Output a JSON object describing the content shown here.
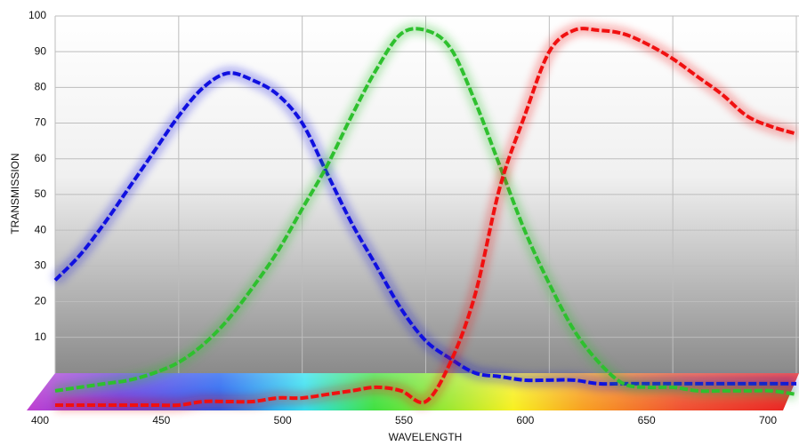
{
  "chart_data": {
    "type": "line",
    "x_label": "WAVELENGTH",
    "y_label": "TRANSMISSION",
    "x": [
      400,
      410,
      420,
      430,
      440,
      450,
      460,
      470,
      480,
      490,
      500,
      510,
      520,
      530,
      540,
      550,
      560,
      570,
      580,
      590,
      600,
      610,
      620,
      630,
      640,
      650,
      660,
      670,
      680,
      690,
      700
    ],
    "series": [
      {
        "color": "#1010e0",
        "values": [
          26,
          33,
          42,
          52,
          62,
          72,
          80,
          84,
          82,
          78,
          70,
          56,
          42,
          30,
          18,
          9,
          4,
          0,
          -1,
          -2,
          -2,
          -2,
          -3,
          -3,
          -3,
          -3,
          -3,
          -3,
          -3,
          -3,
          -3
        ]
      },
      {
        "color": "#2ec02e",
        "values": [
          -5,
          -4,
          -3,
          -2,
          0,
          3,
          8,
          15,
          24,
          34,
          46,
          58,
          72,
          85,
          95,
          96,
          91,
          76,
          58,
          40,
          25,
          12,
          3,
          -3,
          -4,
          -4,
          -5,
          -5,
          -5,
          -5,
          -6
        ]
      },
      {
        "color": "#f01010",
        "values": [
          -9,
          -9,
          -9,
          -9,
          -9,
          -9,
          -8,
          -8,
          -8,
          -7,
          -7,
          -6,
          -5,
          -4,
          -5,
          -8,
          3,
          22,
          52,
          72,
          90,
          96,
          96,
          95,
          92,
          88,
          83,
          78,
          72,
          69,
          67
        ]
      }
    ],
    "xlim": [
      400,
      700
    ],
    "ylim": [
      -10,
      100
    ],
    "xticks": [
      400,
      450,
      500,
      550,
      600,
      650,
      700
    ],
    "yticks": [
      10,
      20,
      30,
      40,
      50,
      60,
      70,
      80,
      90,
      100
    ],
    "grid": true
  }
}
